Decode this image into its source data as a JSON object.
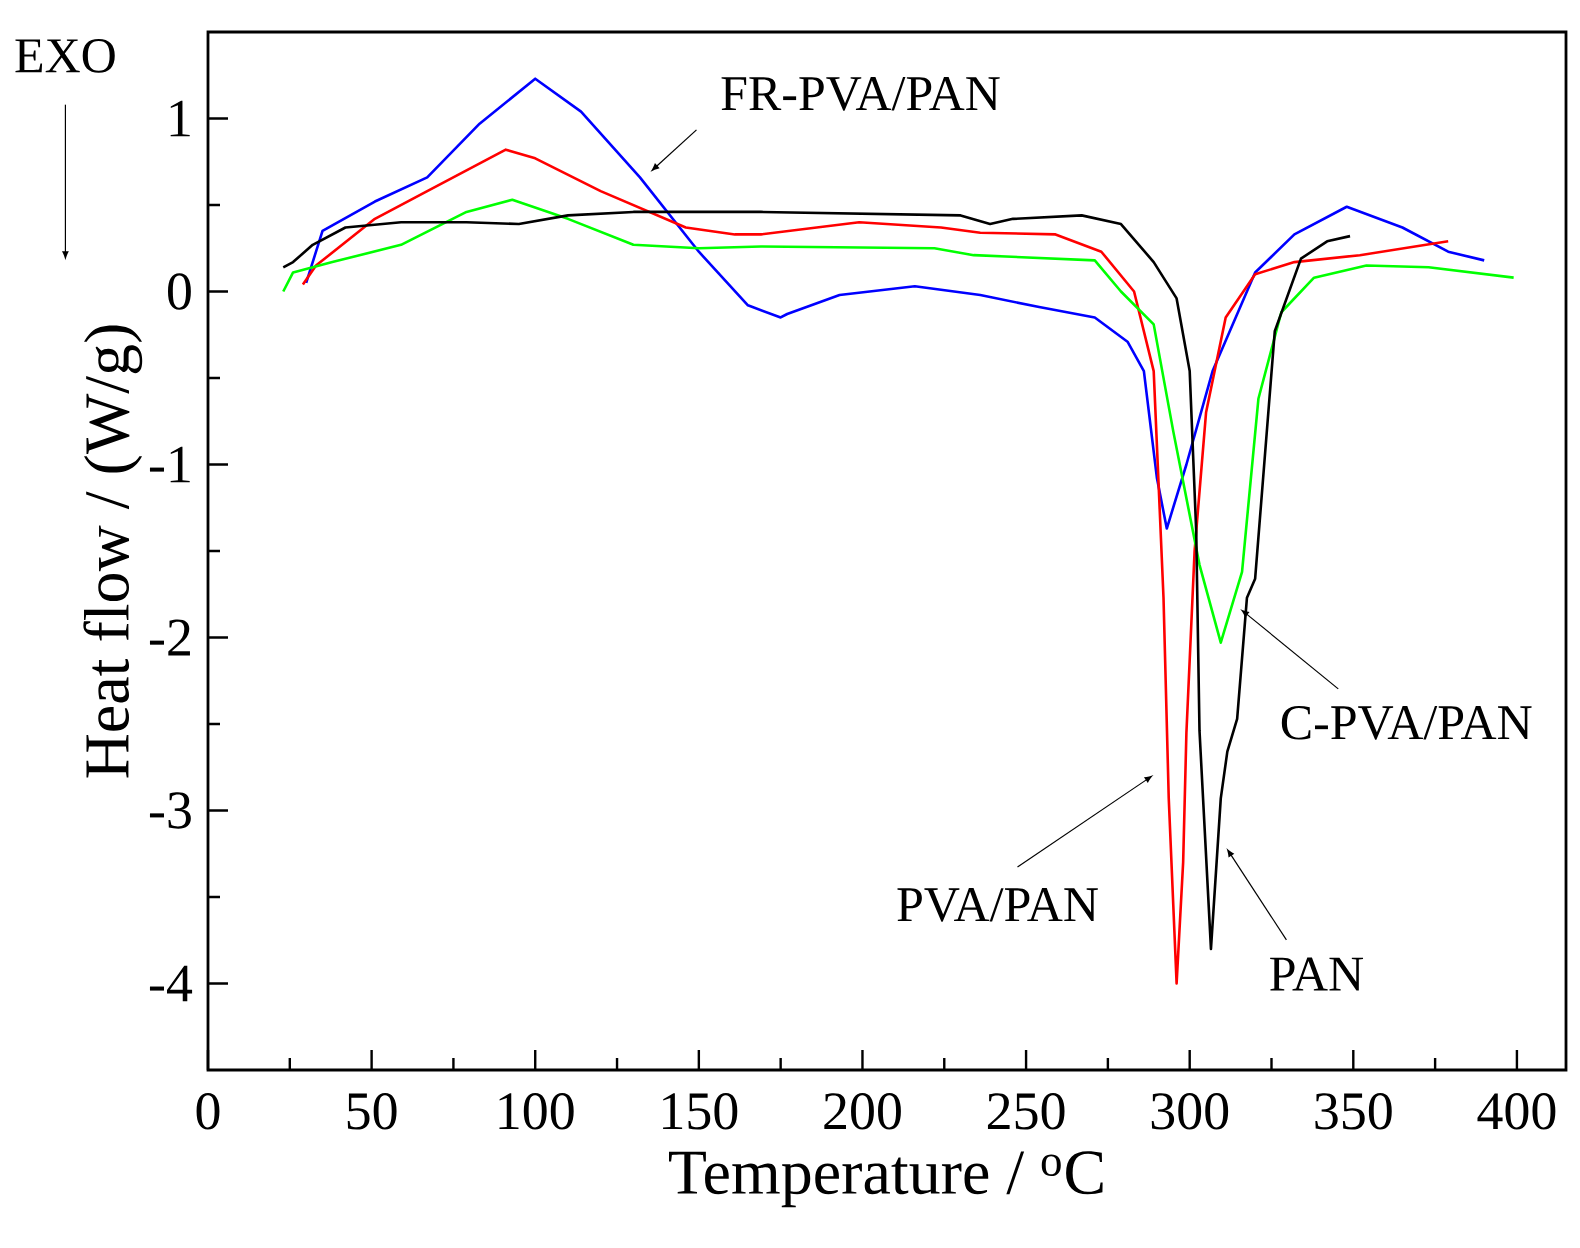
{
  "chart_data": {
    "type": "line",
    "xlabel": "Temperature / $^{o}$C",
    "ylabel": "Heat flow / (W/g)",
    "xlim": [
      0,
      415
    ],
    "ylim": [
      -4.5,
      1.5
    ],
    "xticks": [
      0,
      50,
      100,
      150,
      200,
      250,
      300,
      350,
      400
    ],
    "yticks": [
      -4,
      -3,
      -2,
      -1,
      0,
      1
    ],
    "marker": "none",
    "line_style": "solid",
    "series": [
      {
        "color": "#0000ff",
        "x": [
          30,
          35,
          51,
          67,
          83,
          100,
          114,
          132,
          150,
          165,
          175,
          177,
          193,
          216,
          236,
          254,
          271,
          281,
          286,
          290,
          293,
          299,
          307,
          320,
          332,
          348,
          365,
          379,
          390
        ],
        "values": [
          0.05,
          0.35,
          0.52,
          0.66,
          0.97,
          1.23,
          1.04,
          0.66,
          0.23,
          -0.08,
          -0.15,
          -0.13,
          -0.02,
          0.03,
          -0.02,
          -0.09,
          -0.15,
          -0.29,
          -0.46,
          -1.08,
          -1.37,
          -1.0,
          -0.46,
          0.11,
          0.33,
          0.49,
          0.37,
          0.23,
          0.18
        ]
      },
      {
        "color": "#ff0000",
        "x": [
          29,
          33,
          51,
          67,
          91,
          100,
          120,
          146,
          161,
          169,
          199,
          224,
          236,
          259,
          273,
          283,
          289,
          292,
          293.6,
          296,
          298,
          299,
          301.5,
          305,
          311,
          320,
          332,
          352,
          379
        ],
        "values": [
          0.04,
          0.15,
          0.42,
          0.58,
          0.82,
          0.77,
          0.58,
          0.37,
          0.33,
          0.33,
          0.4,
          0.37,
          0.34,
          0.33,
          0.23,
          0.0,
          -0.46,
          -1.77,
          -2.93,
          -4.0,
          -3.3,
          -2.55,
          -1.5,
          -0.7,
          -0.15,
          0.1,
          0.17,
          0.21,
          0.29
        ]
      },
      {
        "color": "#00ff00",
        "x": [
          23,
          26,
          38,
          59,
          79,
          93,
          110,
          130,
          150,
          169,
          222,
          234,
          271,
          279,
          289,
          295,
          303,
          309.5,
          316,
          321,
          328,
          338,
          354,
          373,
          399
        ],
        "values": [
          0.0,
          0.11,
          0.17,
          0.27,
          0.46,
          0.53,
          0.42,
          0.27,
          0.25,
          0.26,
          0.25,
          0.21,
          0.18,
          0.0,
          -0.19,
          -0.81,
          -1.58,
          -2.03,
          -1.62,
          -0.62,
          -0.12,
          0.08,
          0.15,
          0.14,
          0.08
        ]
      },
      {
        "color": "#000000",
        "x": [
          23,
          26,
          32,
          42,
          59,
          79,
          95,
          110,
          130,
          169,
          230,
          239,
          246,
          267,
          279,
          289,
          296,
          300,
          302,
          303,
          306.5,
          309.5,
          311.5,
          314.5,
          317.5,
          320,
          326,
          334,
          342,
          349
        ],
        "values": [
          0.14,
          0.17,
          0.27,
          0.37,
          0.4,
          0.4,
          0.39,
          0.44,
          0.46,
          0.46,
          0.44,
          0.39,
          0.42,
          0.44,
          0.39,
          0.17,
          -0.04,
          -0.46,
          -1.39,
          -2.54,
          -3.8,
          -2.93,
          -2.66,
          -2.47,
          -1.77,
          -1.66,
          -0.23,
          0.19,
          0.29,
          0.32
        ]
      }
    ],
    "annotations": [
      "EXO",
      {
        "text": "FR-PVA/PAN",
        "x": 134,
        "y": 0.68
      },
      {
        "text": "C-PVA/PAN",
        "x": 313,
        "y": -1.8
      },
      {
        "text": "PVA/PAN",
        "x": 292,
        "y": -2.76
      },
      {
        "text": "PAN",
        "x": 310,
        "y": -3.17
      }
    ]
  }
}
